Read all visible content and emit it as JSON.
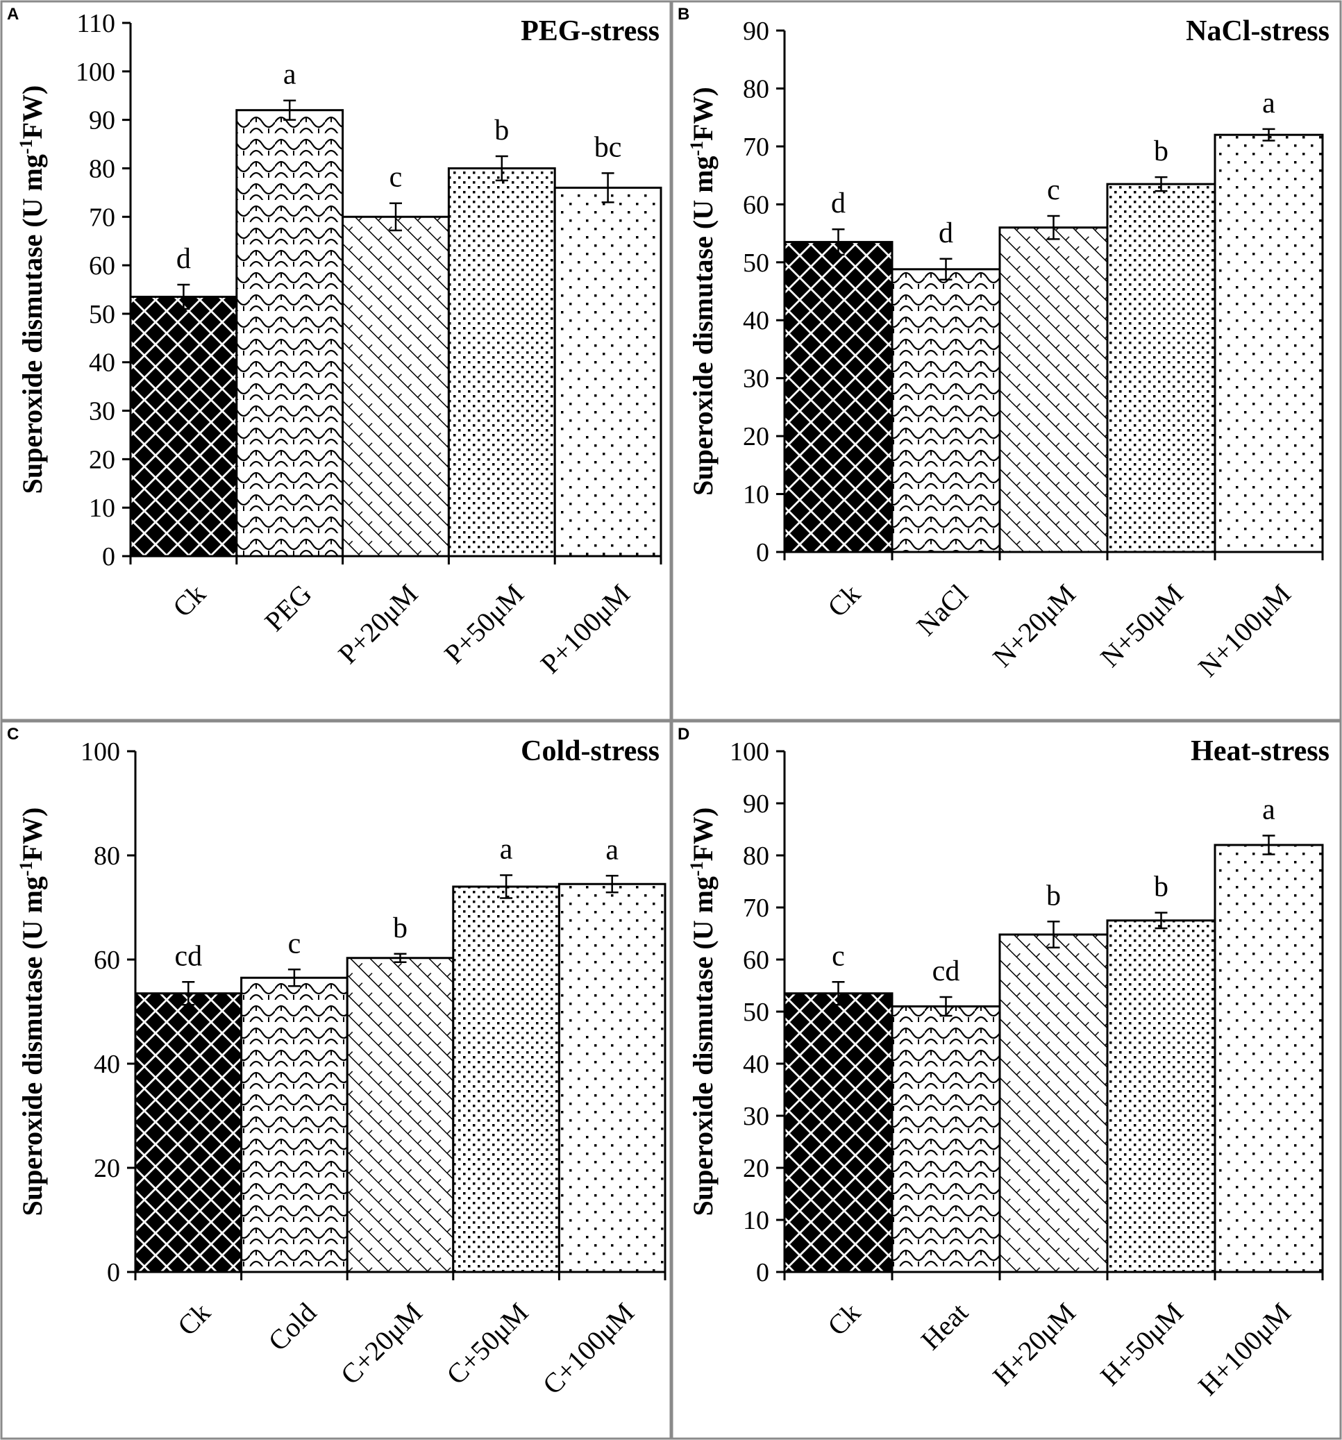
{
  "figure": {
    "background": "#ffffff",
    "border_color": "#8a8a8a"
  },
  "chart_data": [
    {
      "panel": "A",
      "type": "bar",
      "title": "PEG-stress",
      "ylabel": "Superoxide dismutase (U mg-1FW)",
      "ylabel_parts": {
        "before": "Superoxide dismutase (U mg",
        "sup": "-1",
        "after": "FW)"
      },
      "ylim": [
        0,
        110
      ],
      "yticks": [
        0,
        10,
        20,
        30,
        40,
        50,
        60,
        70,
        80,
        90,
        100,
        110
      ],
      "categories": [
        "Ck",
        "PEG",
        "P+20μM",
        "P+50μM",
        "P+100μM"
      ],
      "values": [
        53.5,
        92,
        70,
        80,
        76
      ],
      "errors": [
        2.5,
        2.0,
        2.8,
        2.5,
        3.0
      ],
      "letters": [
        "d",
        "a",
        "c",
        "b",
        "bc"
      ],
      "patterns": [
        "diamond",
        "scallop",
        "diagonal",
        "dense-dots",
        "sparse-dots"
      ],
      "grid": false
    },
    {
      "panel": "B",
      "type": "bar",
      "title": "NaCl-stress",
      "ylabel": "Superoxide dismutase (U mg-1FW)",
      "ylabel_parts": {
        "before": "Superoxide dismutase (U mg",
        "sup": "-1",
        "after": "FW)"
      },
      "ylim": [
        0,
        90
      ],
      "yticks": [
        0,
        10,
        20,
        30,
        40,
        50,
        60,
        70,
        80,
        90
      ],
      "categories": [
        "Ck",
        "NaCl",
        "N+20μM",
        "N+50μM",
        "N+100μM"
      ],
      "values": [
        53.5,
        48.8,
        56,
        63.5,
        72
      ],
      "errors": [
        2.2,
        1.8,
        2.0,
        1.2,
        1.0
      ],
      "letters": [
        "d",
        "d",
        "c",
        "b",
        "a"
      ],
      "patterns": [
        "diamond",
        "scallop",
        "diagonal",
        "dense-dots",
        "sparse-dots"
      ],
      "grid": false
    },
    {
      "panel": "C",
      "type": "bar",
      "title": "Cold-stress",
      "ylabel": "Superoxide dismutase (U mg-1FW)",
      "ylabel_parts": {
        "before": "Superoxide dismutase (U mg",
        "sup": "-1",
        "after": "FW)"
      },
      "ylim": [
        0,
        100
      ],
      "yticks": [
        0,
        20,
        40,
        60,
        80,
        100
      ],
      "categories": [
        "Ck",
        "Cold",
        "C+20μM",
        "C+50μM",
        "C+100μM"
      ],
      "values": [
        53.5,
        56.5,
        60.3,
        74,
        74.5
      ],
      "errors": [
        2.2,
        1.6,
        0.8,
        2.2,
        1.6
      ],
      "letters": [
        "cd",
        "c",
        "b",
        "a",
        "a"
      ],
      "patterns": [
        "diamond",
        "scallop",
        "diagonal",
        "dense-dots",
        "sparse-dots"
      ],
      "grid": false
    },
    {
      "panel": "D",
      "type": "bar",
      "title": "Heat-stress",
      "ylabel": "Superoxide dismutase (U mg-1FW)",
      "ylabel_parts": {
        "before": "Superoxide dismutase (U mg",
        "sup": "-1",
        "after": "FW)"
      },
      "ylim": [
        0,
        100
      ],
      "yticks": [
        0,
        10,
        20,
        30,
        40,
        50,
        60,
        70,
        80,
        90,
        100
      ],
      "categories": [
        "Ck",
        "Heat",
        "H+20μM",
        "H+50μM",
        "H+100μM"
      ],
      "values": [
        53.5,
        51,
        64.8,
        67.5,
        82
      ],
      "errors": [
        2.2,
        1.8,
        2.5,
        1.5,
        1.8
      ],
      "letters": [
        "c",
        "cd",
        "b",
        "b",
        "a"
      ],
      "patterns": [
        "diamond",
        "scallop",
        "diagonal",
        "dense-dots",
        "sparse-dots"
      ],
      "grid": false
    }
  ]
}
